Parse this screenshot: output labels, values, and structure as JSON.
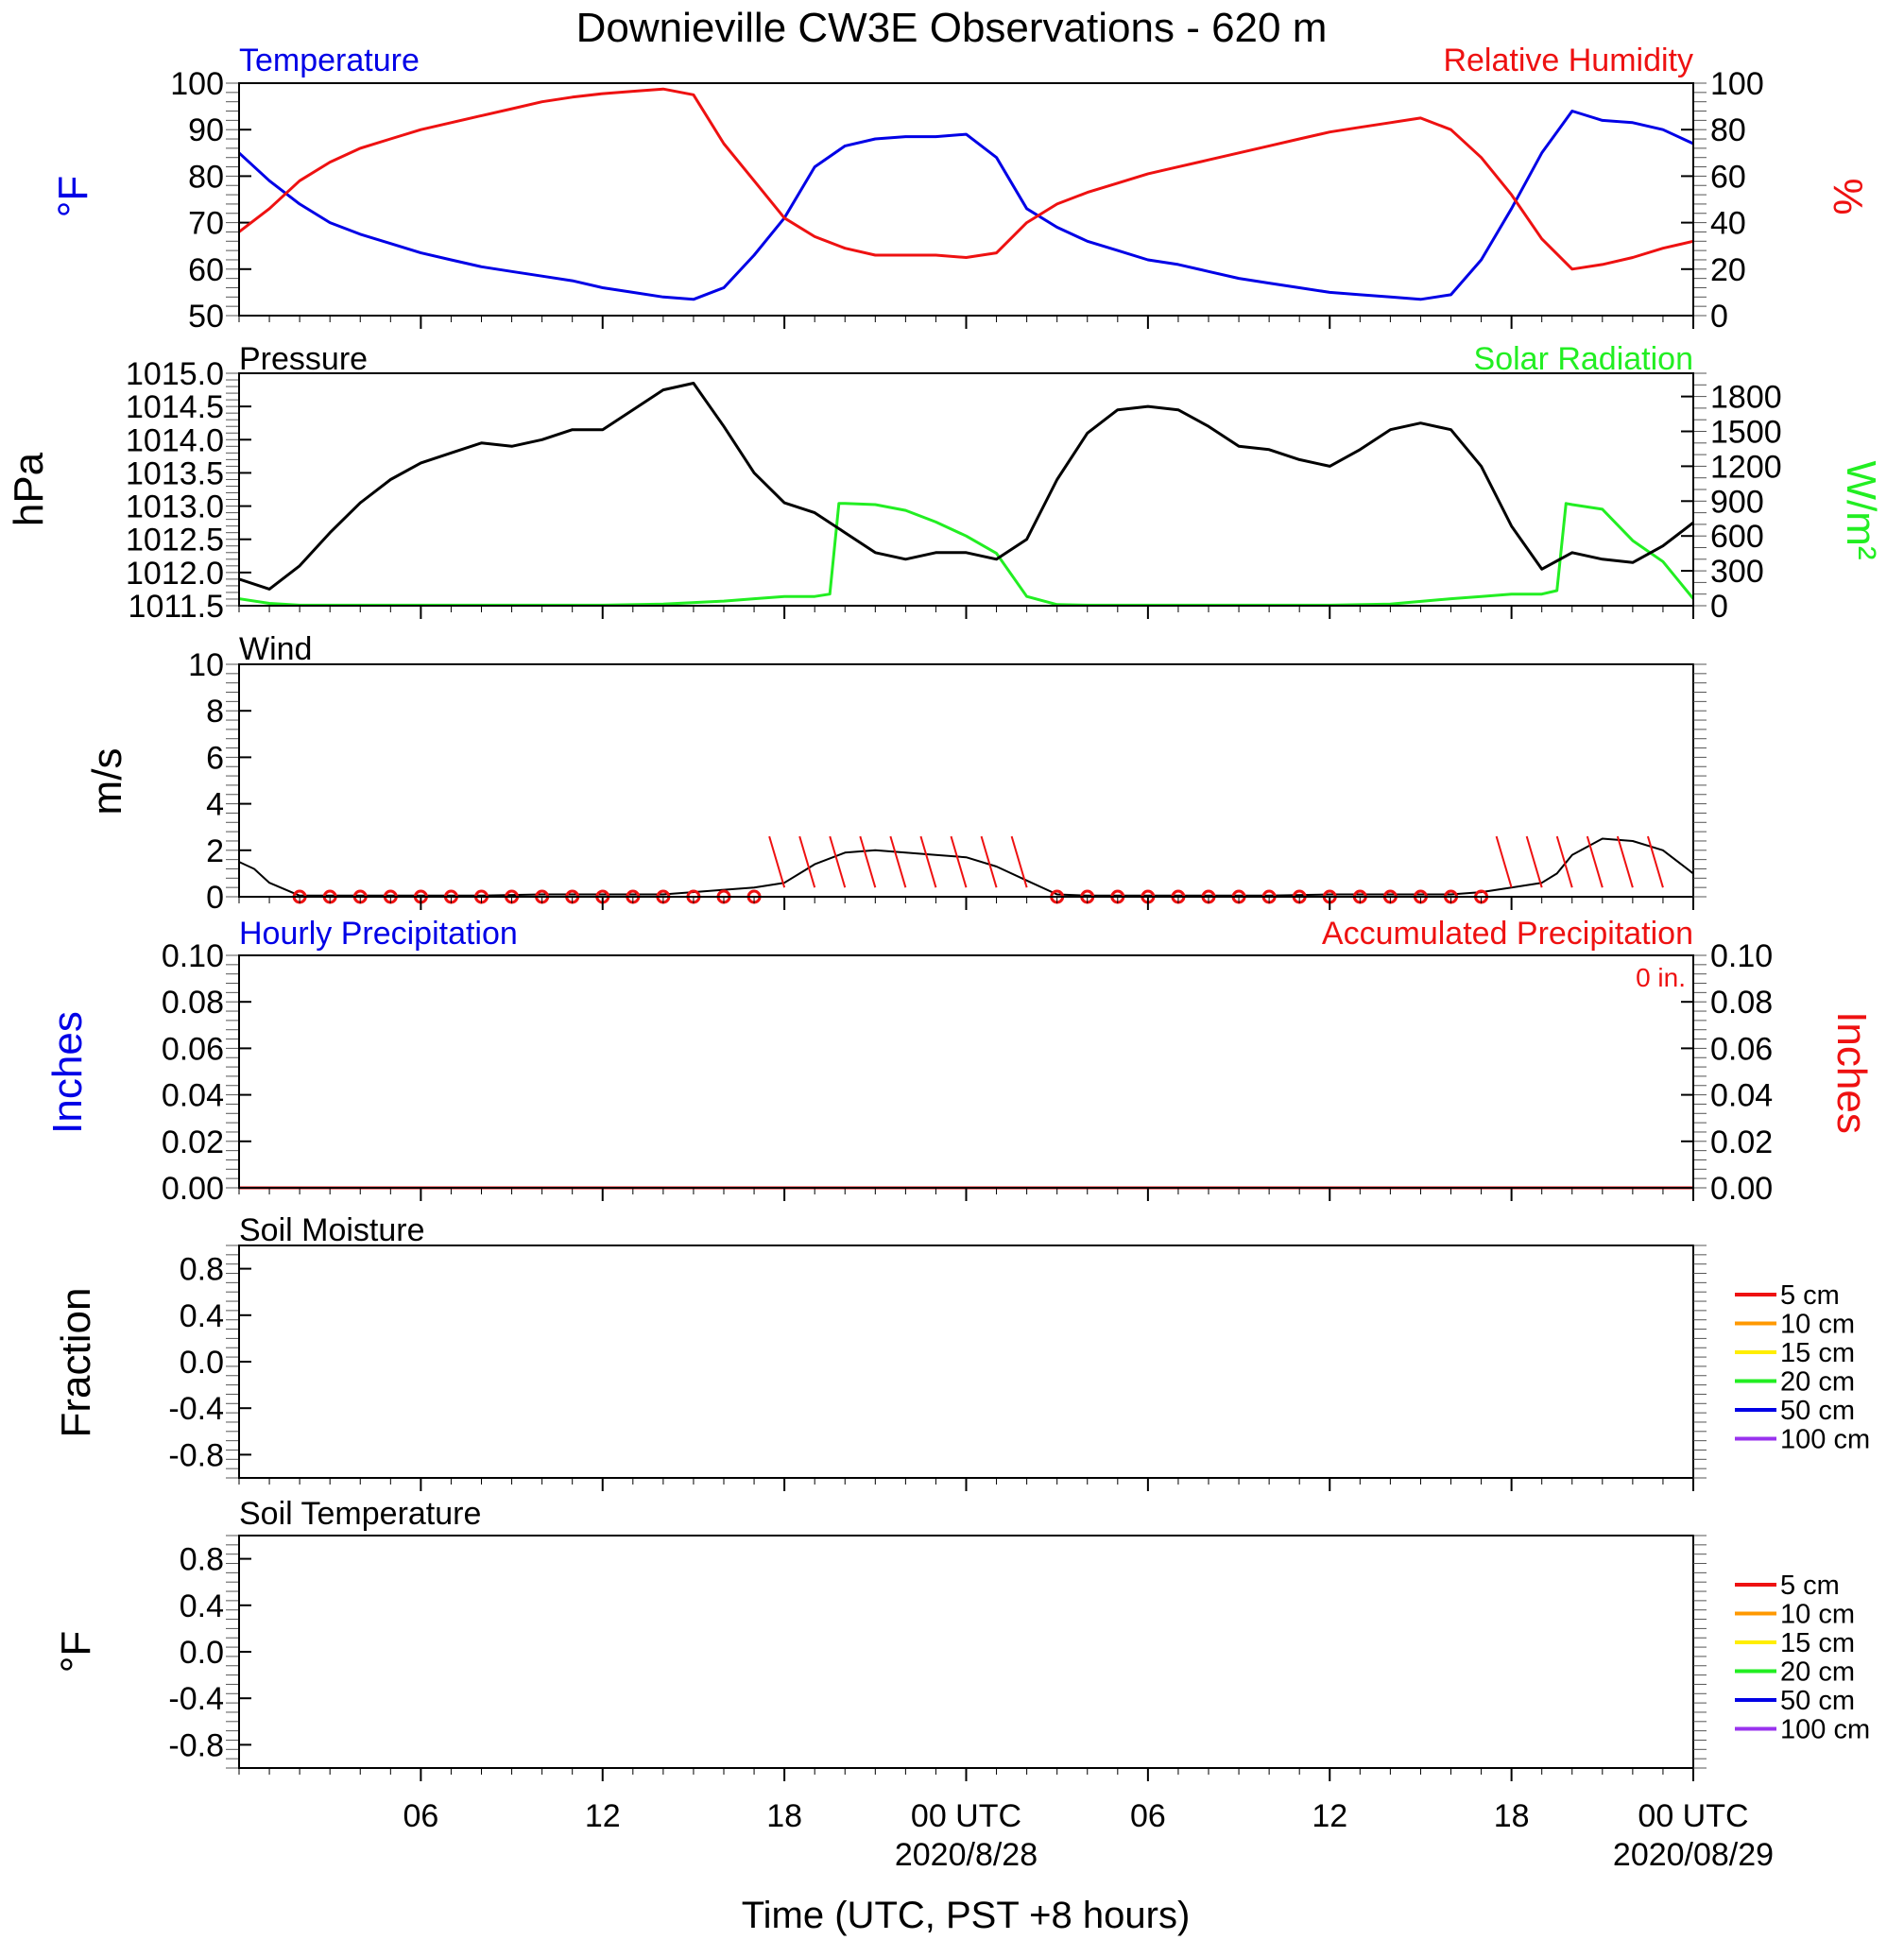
{
  "title": "Downieville CW3E Observations - 620 m",
  "x_axis": {
    "label": "Time (UTC, PST +8 hours)",
    "range_hours": [
      0,
      48
    ],
    "ticks": [
      {
        "hour": 6,
        "label": "06",
        "sub": ""
      },
      {
        "hour": 12,
        "label": "12",
        "sub": ""
      },
      {
        "hour": 18,
        "label": "18",
        "sub": ""
      },
      {
        "hour": 24,
        "label": "00 UTC",
        "sub": "2020/8/28"
      },
      {
        "hour": 30,
        "label": "06",
        "sub": ""
      },
      {
        "hour": 36,
        "label": "12",
        "sub": ""
      },
      {
        "hour": 42,
        "label": "18",
        "sub": ""
      },
      {
        "hour": 48,
        "label": "00 UTC",
        "sub": "2020/08/29"
      }
    ]
  },
  "colors": {
    "temperature": "#0000e6",
    "humidity": "#ee1111",
    "pressure": "#000000",
    "solar": "#22ee22",
    "wind": "#000000",
    "barb": "#ee1111",
    "precip_hourly": "#0000e6",
    "precip_accum": "#ee1111"
  },
  "panels": {
    "temp_rh": {
      "left_title": "Temperature",
      "right_title": "Relative Humidity",
      "left_unit": "°F",
      "right_unit": "%",
      "left_ticks": [
        "50",
        "60",
        "70",
        "80",
        "90",
        "100"
      ],
      "right_ticks": [
        "0",
        "20",
        "40",
        "60",
        "80",
        "100"
      ]
    },
    "pressure_solar": {
      "left_title": "Pressure",
      "right_title": "Solar Radiation",
      "left_unit": "hPa",
      "right_unit": "W/m²",
      "left_ticks": [
        "1011.5",
        "1012.0",
        "1012.5",
        "1013.0",
        "1013.5",
        "1014.0",
        "1014.5",
        "1015.0"
      ],
      "right_ticks": [
        "0",
        "300",
        "600",
        "900",
        "1200",
        "1500",
        "1800"
      ]
    },
    "wind": {
      "left_title": "Wind",
      "left_unit": "m/s",
      "left_ticks": [
        "0",
        "2",
        "4",
        "6",
        "8",
        "10"
      ]
    },
    "precip": {
      "left_title": "Hourly Precipitation",
      "right_title": "Accumulated Precipitation",
      "total_label": "0 in.",
      "left_unit": "Inches",
      "right_unit": "Inches",
      "left_ticks": [
        "0.00",
        "0.02",
        "0.04",
        "0.06",
        "0.08",
        "0.10"
      ],
      "right_ticks": [
        "0.00",
        "0.02",
        "0.04",
        "0.06",
        "0.08",
        "0.10"
      ]
    },
    "soil_moisture": {
      "left_title": "Soil Moisture",
      "left_unit": "Fraction",
      "left_ticks": [
        "-0.8",
        "-0.4",
        "0.0",
        "0.4",
        "0.8"
      ]
    },
    "soil_temp": {
      "left_title": "Soil Temperature",
      "left_unit": "°F",
      "left_ticks": [
        "-0.8",
        "-0.4",
        "0.0",
        "0.4",
        "0.8"
      ]
    }
  },
  "soil_legend": [
    {
      "label": "5 cm",
      "color": "#ee1111"
    },
    {
      "label": "10 cm",
      "color": "#ff9900"
    },
    {
      "label": "15 cm",
      "color": "#ffee00"
    },
    {
      "label": "20 cm",
      "color": "#22ee22"
    },
    {
      "label": "50 cm",
      "color": "#0000e6"
    },
    {
      "label": "100 cm",
      "color": "#9933ee"
    }
  ],
  "chart_data": [
    {
      "type": "line",
      "title": "Temperature",
      "ylabel": "°F",
      "ylim": [
        50,
        100
      ],
      "x_units": "hours since 2020-08-27 00 UTC",
      "series": [
        {
          "name": "Temperature",
          "x": [
            0,
            1,
            2,
            3,
            4,
            5,
            6,
            7,
            8,
            9,
            10,
            11,
            12,
            13,
            14,
            15,
            16,
            17,
            18,
            19,
            20,
            21,
            22,
            23,
            24,
            25,
            26,
            27,
            28,
            29,
            30,
            31,
            32,
            33,
            34,
            35,
            36,
            37,
            38,
            39,
            40,
            41,
            42,
            43,
            44,
            45,
            46,
            47,
            48
          ],
          "values": [
            85,
            79,
            74,
            70,
            67.5,
            65.5,
            63.5,
            62,
            60.5,
            59.5,
            58.5,
            57.5,
            56,
            55,
            54,
            53.5,
            56,
            63,
            71,
            82,
            86.5,
            88,
            88.5,
            88.5,
            89,
            84,
            73,
            69,
            66,
            64,
            62,
            61,
            59.5,
            58,
            57,
            56,
            55,
            54.5,
            54,
            53.5,
            54.5,
            62,
            73,
            85,
            94,
            92,
            91.5,
            90,
            87
          ]
        }
      ]
    },
    {
      "type": "line",
      "title": "Relative Humidity",
      "ylabel": "%",
      "ylim": [
        0,
        100
      ],
      "x_units": "hours since 2020-08-27 00 UTC",
      "series": [
        {
          "name": "Relative Humidity",
          "x": [
            0,
            1,
            2,
            3,
            4,
            5,
            6,
            7,
            8,
            9,
            10,
            11,
            12,
            13,
            14,
            15,
            16,
            17,
            18,
            19,
            20,
            21,
            22,
            23,
            24,
            25,
            26,
            27,
            28,
            29,
            30,
            31,
            32,
            33,
            34,
            35,
            36,
            37,
            38,
            39,
            40,
            41,
            42,
            43,
            44,
            45,
            46,
            47,
            48
          ],
          "values": [
            36,
            46,
            58,
            66,
            72,
            76,
            80,
            83,
            86,
            89,
            92,
            94,
            95.5,
            96.5,
            97.5,
            95,
            74,
            58,
            42,
            34,
            29,
            26,
            26,
            26,
            25,
            27,
            40,
            48,
            53,
            57,
            61,
            64,
            67,
            70,
            73,
            76,
            79,
            81,
            83,
            85,
            80,
            68,
            52,
            33,
            20,
            22,
            25,
            29,
            32
          ]
        }
      ]
    },
    {
      "type": "line",
      "title": "Pressure",
      "ylabel": "hPa",
      "ylim": [
        1011.5,
        1015.0
      ],
      "x_units": "hours since 2020-08-27 00 UTC",
      "series": [
        {
          "name": "Pressure",
          "x": [
            0,
            1,
            2,
            3,
            4,
            5,
            6,
            7,
            8,
            9,
            10,
            11,
            12,
            13,
            14,
            15,
            16,
            17,
            18,
            19,
            20,
            21,
            22,
            23,
            24,
            25,
            26,
            27,
            28,
            29,
            30,
            31,
            32,
            33,
            34,
            35,
            36,
            37,
            38,
            39,
            40,
            41,
            42,
            43,
            44,
            45,
            46,
            47,
            48
          ],
          "values": [
            1011.9,
            1011.75,
            1012.1,
            1012.6,
            1013.05,
            1013.4,
            1013.65,
            1013.8,
            1013.95,
            1013.9,
            1014.0,
            1014.15,
            1014.15,
            1014.45,
            1014.75,
            1014.85,
            1014.2,
            1013.5,
            1013.05,
            1012.9,
            1012.6,
            1012.3,
            1012.2,
            1012.3,
            1012.3,
            1012.2,
            1012.5,
            1013.4,
            1014.1,
            1014.45,
            1014.5,
            1014.45,
            1014.2,
            1013.9,
            1013.85,
            1013.7,
            1013.6,
            1013.85,
            1014.15,
            1014.25,
            1014.15,
            1013.6,
            1012.7,
            1012.05,
            1012.3,
            1012.2,
            1012.15,
            1012.4,
            1012.75
          ]
        }
      ]
    },
    {
      "type": "line",
      "title": "Solar Radiation",
      "ylabel": "W/m²",
      "ylim": [
        0,
        2000
      ],
      "x_units": "hours since 2020-08-27 00 UTC",
      "series": [
        {
          "name": "Solar Radiation",
          "x": [
            0,
            1,
            2,
            4,
            6,
            8,
            10,
            12,
            14,
            16,
            17,
            18,
            19,
            19.5,
            19.8,
            20,
            21,
            22,
            23,
            24,
            25,
            26,
            27,
            28,
            30,
            32,
            34,
            36,
            38,
            40,
            41,
            42,
            43,
            43.5,
            43.8,
            44,
            45,
            46,
            47,
            48
          ],
          "values": [
            60,
            20,
            5,
            5,
            5,
            5,
            5,
            5,
            15,
            40,
            60,
            80,
            80,
            100,
            880,
            880,
            870,
            820,
            720,
            600,
            450,
            80,
            10,
            5,
            5,
            5,
            5,
            5,
            15,
            60,
            80,
            100,
            100,
            130,
            880,
            870,
            830,
            560,
            380,
            60
          ]
        }
      ]
    },
    {
      "type": "line",
      "title": "Wind",
      "ylabel": "m/s",
      "ylim": [
        0,
        10
      ],
      "x_units": "hours since 2020-08-27 00 UTC",
      "series": [
        {
          "name": "Wind speed",
          "x": [
            0,
            0.5,
            1,
            2,
            4,
            6,
            8,
            10,
            12,
            14,
            16,
            17,
            18,
            18.5,
            19,
            20,
            21,
            22,
            23,
            24,
            25,
            26,
            27,
            28,
            30,
            32,
            34,
            36,
            38,
            40,
            41,
            42,
            43,
            43.5,
            44,
            45,
            46,
            47,
            48
          ],
          "values": [
            1.5,
            1.2,
            0.6,
            0.05,
            0.05,
            0.05,
            0.05,
            0.1,
            0.1,
            0.1,
            0.3,
            0.4,
            0.6,
            1.0,
            1.4,
            1.9,
            2.0,
            1.9,
            1.8,
            1.7,
            1.3,
            0.7,
            0.1,
            0.05,
            0.05,
            0.05,
            0.05,
            0.1,
            0.1,
            0.1,
            0.2,
            0.4,
            0.6,
            1.0,
            1.8,
            2.5,
            2.4,
            2.0,
            1.0
          ]
        }
      ]
    },
    {
      "type": "line",
      "title": "Hourly Precipitation",
      "ylabel": "Inches",
      "ylim": [
        0,
        0.1
      ],
      "x_units": "hours since 2020-08-27 00 UTC",
      "series": [
        {
          "name": "Hourly Precipitation",
          "x": [
            0,
            48
          ],
          "values": [
            0,
            0
          ]
        },
        {
          "name": "Accumulated Precipitation",
          "x": [
            0,
            48
          ],
          "values": [
            0,
            0
          ]
        }
      ]
    },
    {
      "type": "line",
      "title": "Soil Moisture",
      "ylabel": "Fraction",
      "ylim": [
        -1,
        1
      ],
      "series": []
    },
    {
      "type": "line",
      "title": "Soil Temperature",
      "ylabel": "°F",
      "ylim": [
        -1,
        1
      ],
      "series": []
    }
  ]
}
